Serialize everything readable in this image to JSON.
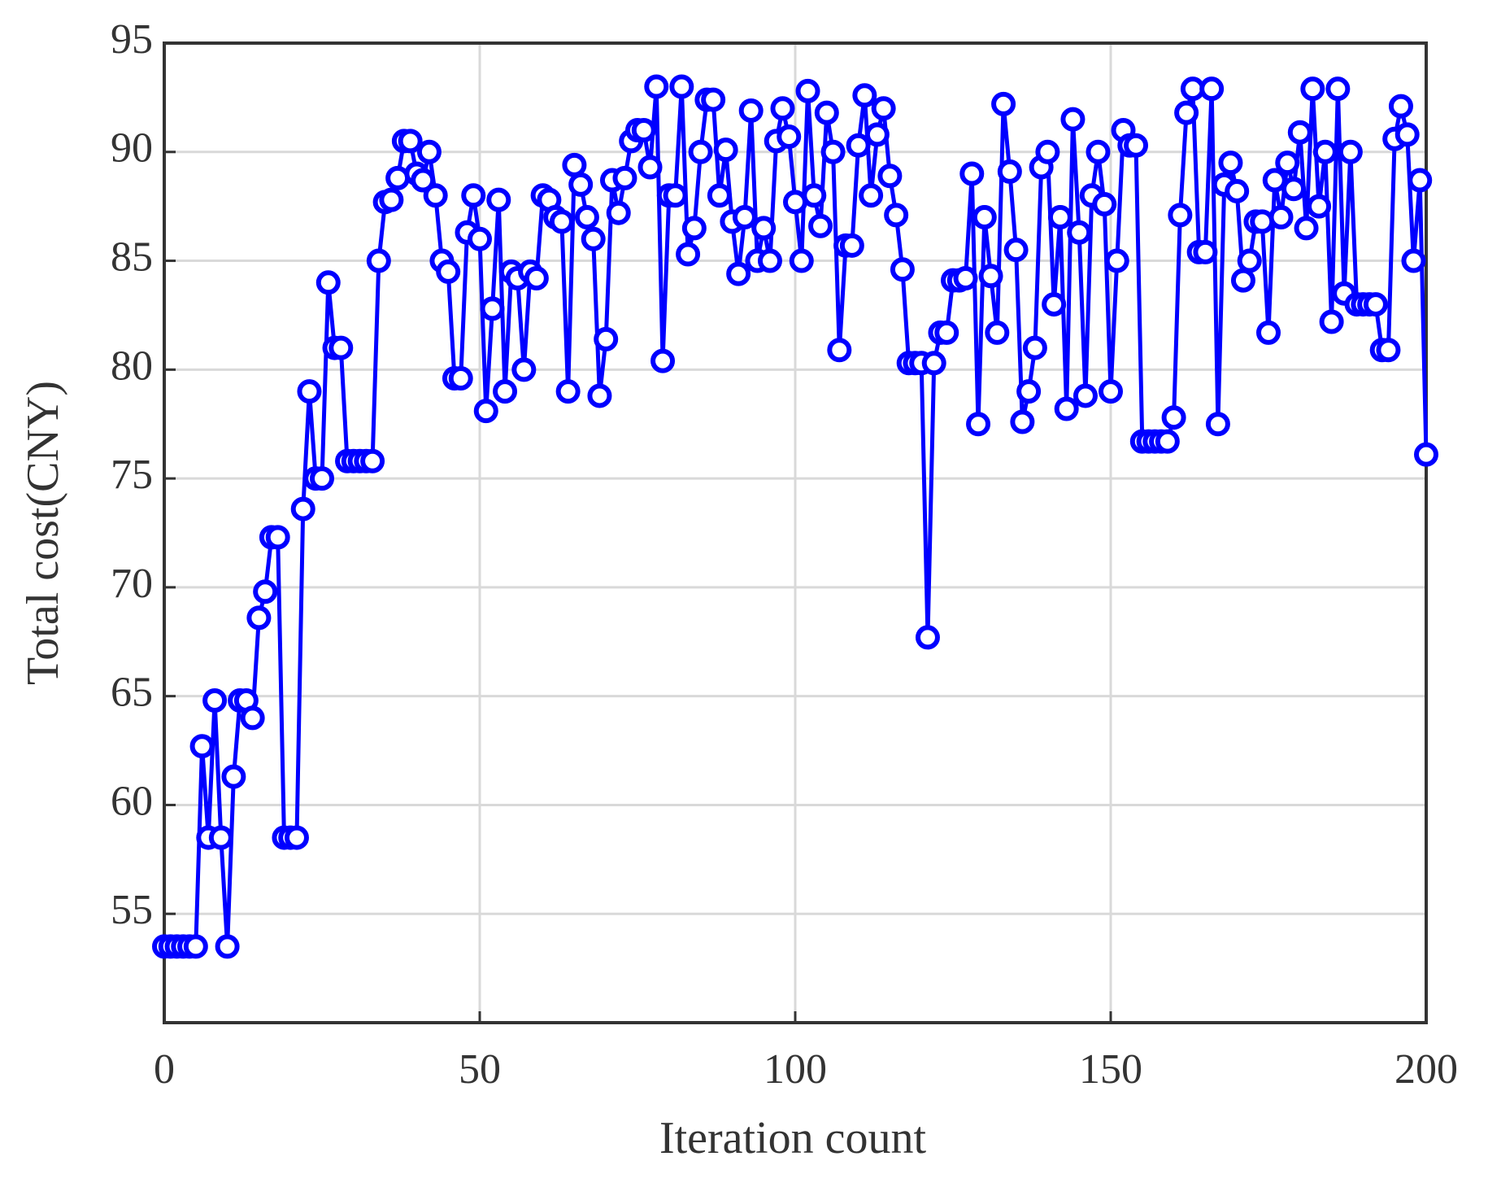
{
  "chart_data": {
    "type": "line",
    "xlabel": "Iteration count",
    "ylabel": "Total cost(CNY)",
    "color": "#0000ff",
    "grid": true,
    "xlim": [
      0,
      200
    ],
    "ylim": [
      50,
      95
    ],
    "xticks": [
      0,
      50,
      100,
      150,
      200
    ],
    "yticks": [
      55,
      60,
      65,
      70,
      75,
      80,
      85,
      90,
      95
    ],
    "x": [
      0,
      1,
      2,
      3,
      4,
      5,
      6,
      7,
      8,
      9,
      10,
      11,
      12,
      13,
      14,
      15,
      16,
      17,
      18,
      19,
      20,
      21,
      22,
      23,
      24,
      25,
      26,
      27,
      28,
      29,
      30,
      31,
      32,
      33,
      34,
      35,
      36,
      37,
      38,
      39,
      40,
      41,
      42,
      43,
      44,
      45,
      46,
      47,
      48,
      49,
      50,
      51,
      52,
      53,
      54,
      55,
      56,
      57,
      58,
      59,
      60,
      61,
      62,
      63,
      64,
      65,
      66,
      67,
      68,
      69,
      70,
      71,
      72,
      73,
      74,
      75,
      76,
      77,
      78,
      79,
      80,
      81,
      82,
      83,
      84,
      85,
      86,
      87,
      88,
      89,
      90,
      91,
      92,
      93,
      94,
      95,
      96,
      97,
      98,
      99,
      100,
      101,
      102,
      103,
      104,
      105,
      106,
      107,
      108,
      109,
      110,
      111,
      112,
      113,
      114,
      115,
      116,
      117,
      118,
      119,
      120,
      121,
      122,
      123,
      124,
      125,
      126,
      127,
      128,
      129,
      130,
      131,
      132,
      133,
      134,
      135,
      136,
      137,
      138,
      139,
      140,
      141,
      142,
      143,
      144,
      145,
      146,
      147,
      148,
      149,
      150,
      151,
      152,
      153,
      154,
      155,
      156,
      157,
      158,
      159,
      160,
      161,
      162,
      163,
      164,
      165,
      166,
      167,
      168,
      169,
      170,
      171,
      172,
      173,
      174,
      175,
      176,
      177,
      178,
      179,
      180,
      181,
      182,
      183,
      184,
      185,
      186,
      187,
      188,
      189,
      190,
      191,
      192,
      193,
      194,
      195,
      196,
      197,
      198,
      199,
      200
    ],
    "values": [
      53.5,
      53.5,
      53.5,
      53.5,
      53.5,
      53.5,
      62.7,
      58.5,
      64.8,
      58.5,
      53.5,
      61.3,
      64.8,
      64.8,
      64,
      68.6,
      69.8,
      72.3,
      72.3,
      58.5,
      58.5,
      58.5,
      73.6,
      79,
      75,
      75,
      84,
      81,
      81,
      75.8,
      75.8,
      75.8,
      75.8,
      75.8,
      85,
      87.7,
      87.8,
      88.8,
      90.5,
      90.5,
      89,
      88.7,
      90,
      88,
      85,
      84.5,
      79.6,
      79.6,
      86.3,
      88,
      86,
      78.1,
      82.8,
      87.8,
      79,
      84.5,
      84.2,
      80,
      84.5,
      84.2,
      88,
      87.8,
      87,
      86.8,
      79,
      89.4,
      88.5,
      87,
      86,
      78.8,
      81.4,
      88.7,
      87.2,
      88.8,
      90.5,
      91,
      91,
      89.3,
      93,
      80.4,
      88,
      88,
      93,
      85.3,
      86.5,
      90,
      92.4,
      92.4,
      88,
      90.1,
      86.8,
      84.4,
      87,
      91.9,
      85,
      86.5,
      85,
      90.5,
      92,
      90.7,
      87.7,
      85,
      92.8,
      88,
      86.6,
      91.8,
      90,
      80.9,
      85.7,
      85.7,
      90.3,
      92.6,
      88,
      90.8,
      92,
      88.9,
      87.1,
      84.6,
      80.3,
      80.3,
      80.3,
      67.7,
      80.3,
      81.7,
      81.7,
      84.1,
      84.1,
      84.2,
      89,
      77.5,
      87,
      84.3,
      81.7,
      92.2,
      89.1,
      85.5,
      77.6,
      79,
      81,
      89.3,
      90,
      83,
      87,
      78.2,
      91.5,
      86.3,
      78.8,
      88,
      90,
      87.6,
      79,
      85,
      91,
      90.3,
      90.3,
      76.7,
      76.7,
      76.7,
      76.7,
      76.7,
      77.8,
      87.1,
      91.8,
      92.9,
      85.4,
      85.4,
      92.9,
      77.5,
      88.5,
      89.5,
      88.2,
      84.1,
      85,
      86.8,
      86.8,
      81.7,
      88.7,
      87,
      89.5,
      88.3,
      90.9,
      86.5,
      92.9,
      87.5,
      90,
      82.2,
      92.9,
      83.5,
      90,
      83,
      83,
      83,
      83,
      80.9,
      80.9,
      90.6,
      92.1,
      90.8,
      85,
      88.7,
      76.1
    ]
  }
}
